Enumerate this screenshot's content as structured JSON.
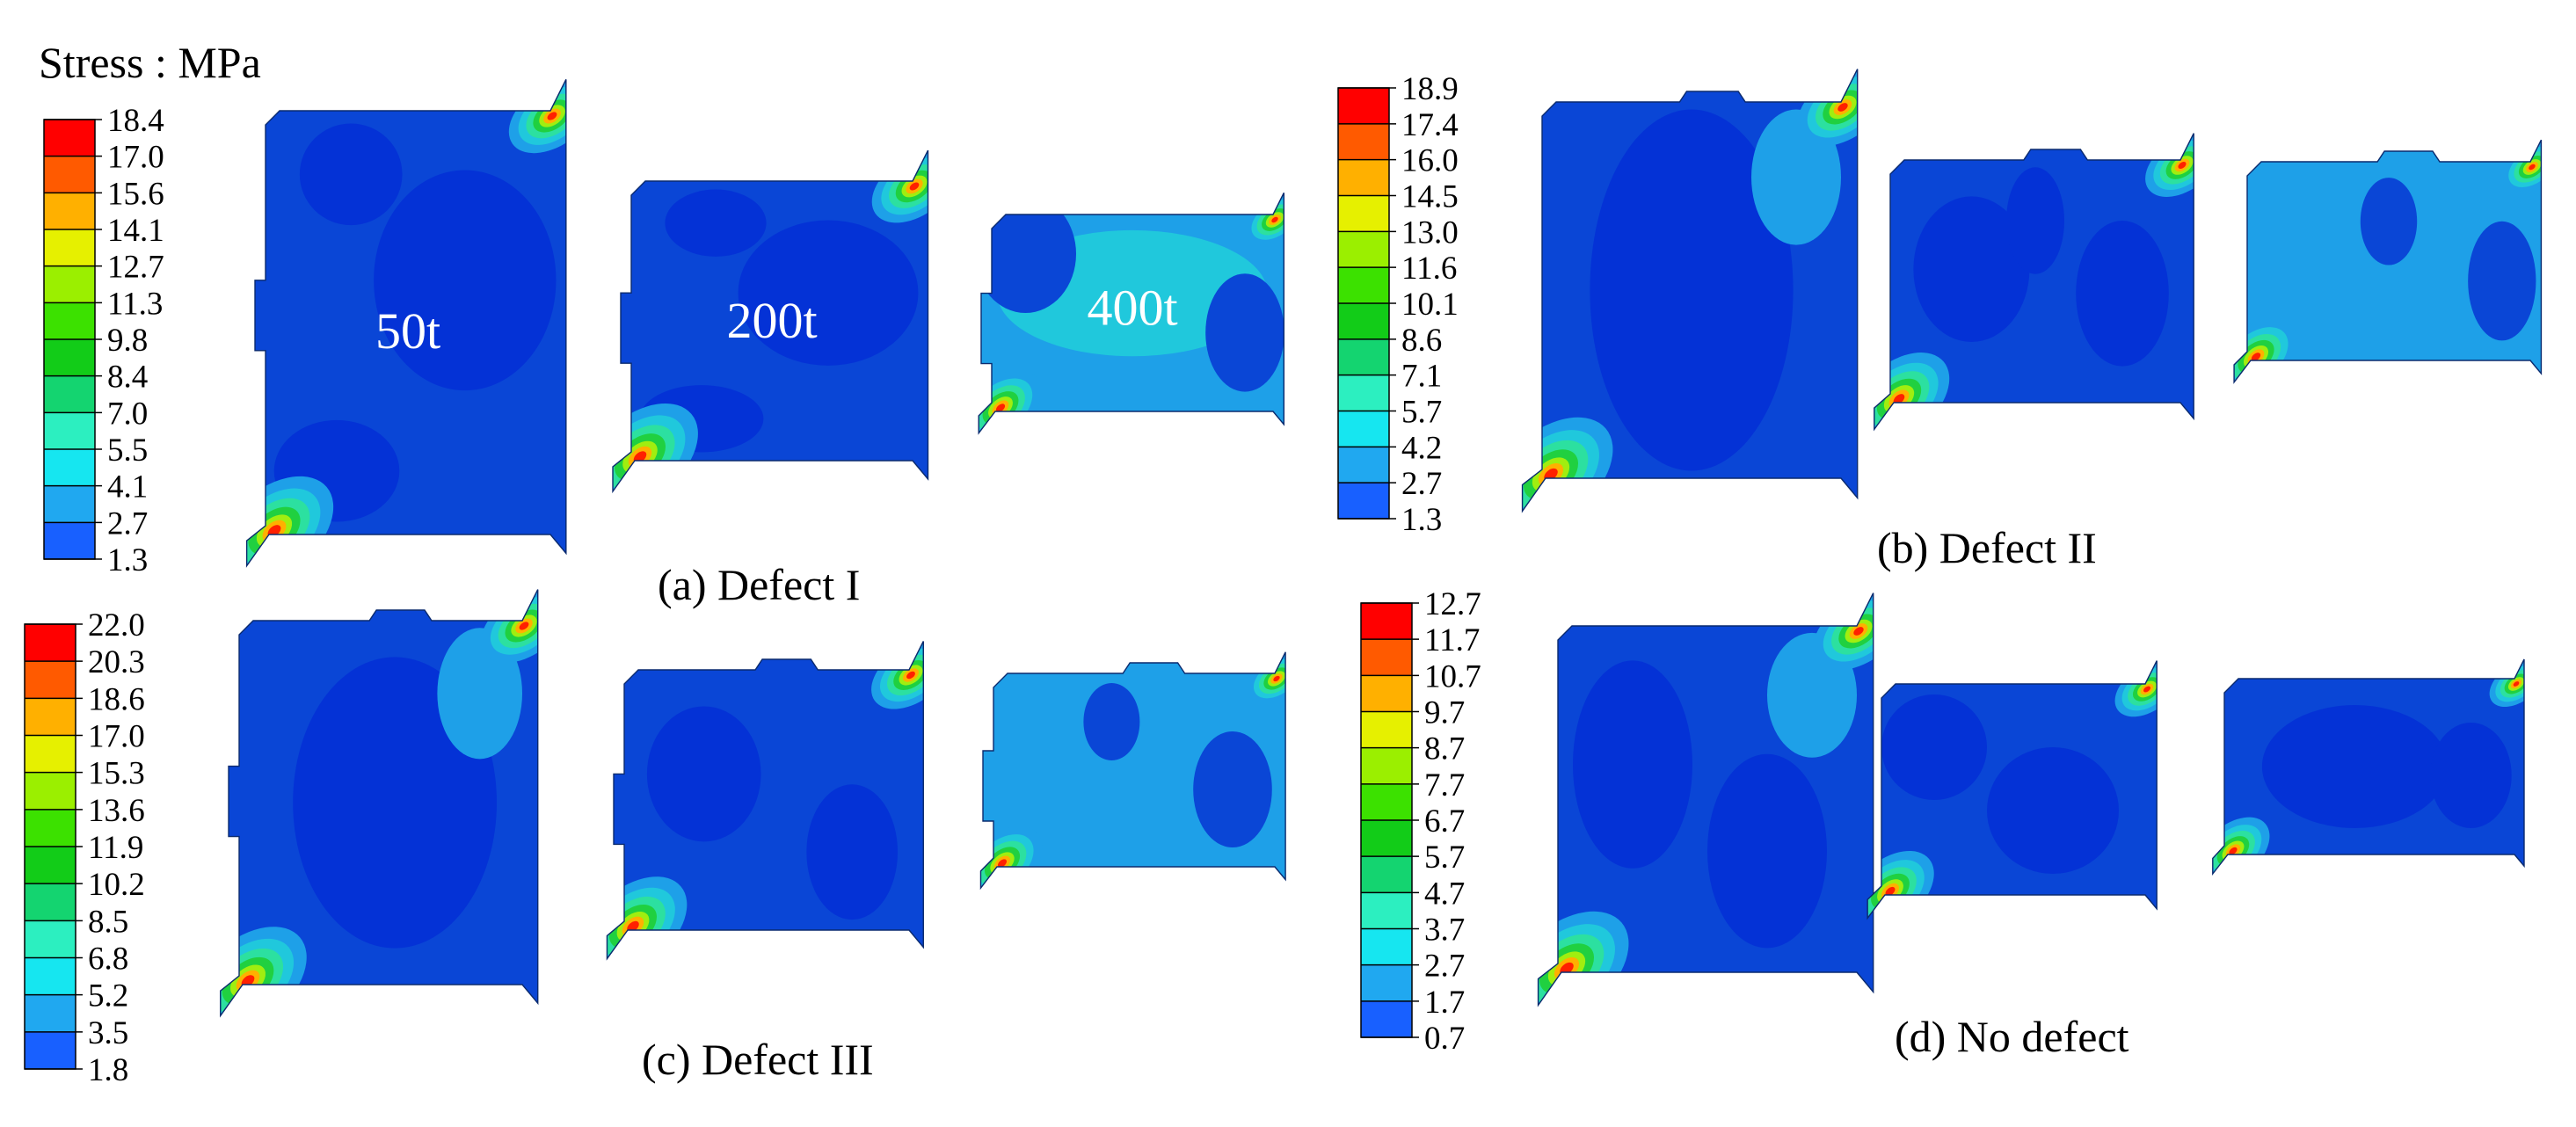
{
  "header": "Stress : MPa",
  "panels": [
    {
      "id": "a",
      "caption": "(a) Defect I",
      "defect": "I",
      "scale": [
        "18.4",
        "17.0",
        "15.6",
        "14.1",
        "12.7",
        "11.3",
        "9.8",
        "8.4",
        "7.0",
        "5.5",
        "4.1",
        "2.7",
        "1.3"
      ],
      "shape_labels": [
        "50t",
        "200t",
        "400t"
      ]
    },
    {
      "id": "b",
      "caption": "(b) Defect II",
      "defect": "II",
      "scale": [
        "18.9",
        "17.4",
        "16.0",
        "14.5",
        "13.0",
        "11.6",
        "10.1",
        "8.6",
        "7.1",
        "5.7",
        "4.2",
        "2.7",
        "1.3"
      ],
      "shape_labels": []
    },
    {
      "id": "c",
      "caption": "(c) Defect III",
      "defect": "III",
      "scale": [
        "22.0",
        "20.3",
        "18.6",
        "17.0",
        "15.3",
        "13.6",
        "11.9",
        "10.2",
        "8.5",
        "6.8",
        "5.2",
        "3.5",
        "1.8"
      ],
      "shape_labels": []
    },
    {
      "id": "d",
      "caption": "(d) No defect",
      "defect": "none",
      "scale": [
        "12.7",
        "11.7",
        "10.7",
        "9.7",
        "8.7",
        "7.7",
        "6.7",
        "5.7",
        "4.7",
        "3.7",
        "2.7",
        "1.7",
        "0.7"
      ],
      "shape_labels": []
    }
  ],
  "colormap": [
    "#ff0000",
    "#ff5a00",
    "#ffb000",
    "#e6f000",
    "#9bef00",
    "#3ce100",
    "#12cc18",
    "#14d470",
    "#2cefc0",
    "#16e6f0",
    "#20a8f0",
    "#1860ff",
    "#0000ff"
  ],
  "colors": {
    "base": "#0a46d6",
    "dark": "#0432d6",
    "light": "#1ea0e8",
    "cyan": "#20c8dc",
    "edge": "#0a2a6e"
  }
}
